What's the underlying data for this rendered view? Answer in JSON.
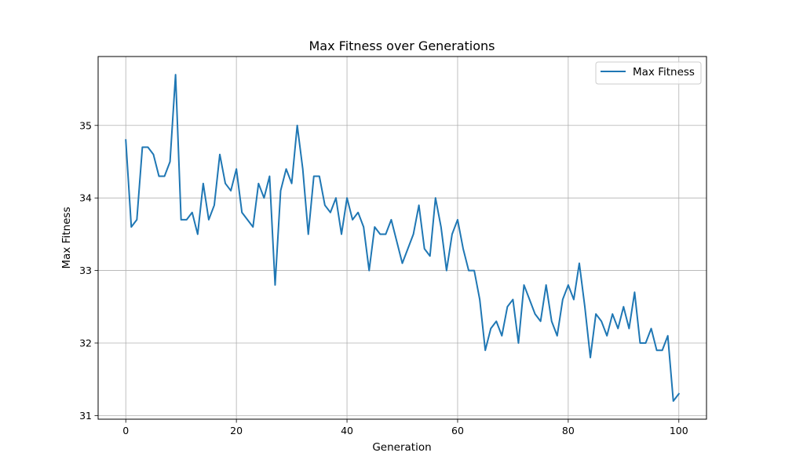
{
  "chart_data": {
    "type": "line",
    "title": "Max Fitness over Generations",
    "xlabel": "Generation",
    "ylabel": "Max Fitness",
    "xlim": [
      -5,
      105
    ],
    "ylim": [
      30.95,
      35.95
    ],
    "xticks": [
      0,
      20,
      40,
      60,
      80,
      100
    ],
    "yticks": [
      31,
      32,
      33,
      34,
      35
    ],
    "grid": true,
    "legend_position": "top-right",
    "series": [
      {
        "name": "Max Fitness",
        "color": "#1f77b4",
        "x": [
          0,
          1,
          2,
          3,
          4,
          5,
          6,
          7,
          8,
          9,
          10,
          11,
          12,
          13,
          14,
          15,
          16,
          17,
          18,
          19,
          20,
          21,
          22,
          23,
          24,
          25,
          26,
          27,
          28,
          29,
          30,
          31,
          32,
          33,
          34,
          35,
          36,
          37,
          38,
          39,
          40,
          41,
          42,
          43,
          44,
          45,
          46,
          47,
          48,
          49,
          50,
          51,
          52,
          53,
          54,
          55,
          56,
          57,
          58,
          59,
          60,
          61,
          62,
          63,
          64,
          65,
          66,
          67,
          68,
          69,
          70,
          71,
          72,
          73,
          74,
          75,
          76,
          77,
          78,
          79,
          80,
          81,
          82,
          83,
          84,
          85,
          86,
          87,
          88,
          89,
          90,
          91,
          92,
          93,
          94,
          95,
          96,
          97,
          98,
          99,
          100
        ],
        "values": [
          34.8,
          33.6,
          33.7,
          34.7,
          34.7,
          34.6,
          34.3,
          34.3,
          34.5,
          35.7,
          33.7,
          33.7,
          33.8,
          33.5,
          34.2,
          33.7,
          33.9,
          34.6,
          34.2,
          34.1,
          34.4,
          33.8,
          33.7,
          33.6,
          34.2,
          34.0,
          34.3,
          32.8,
          34.1,
          34.4,
          34.2,
          35.0,
          34.4,
          33.5,
          34.3,
          34.3,
          33.9,
          33.8,
          34.0,
          33.5,
          34.0,
          33.7,
          33.8,
          33.6,
          33.0,
          33.6,
          33.5,
          33.5,
          33.7,
          33.4,
          33.1,
          33.3,
          33.5,
          33.9,
          33.3,
          33.2,
          34.0,
          33.6,
          33.0,
          33.5,
          33.7,
          33.3,
          33.0,
          33.0,
          32.6,
          31.9,
          32.2,
          32.3,
          32.1,
          32.5,
          32.6,
          32.0,
          32.8,
          32.6,
          32.4,
          32.3,
          32.8,
          32.3,
          32.1,
          32.6,
          32.8,
          32.6,
          33.1,
          32.5,
          31.8,
          32.4,
          32.3,
          32.1,
          32.4,
          32.2,
          32.5,
          32.2,
          32.7,
          32.0,
          32.0,
          32.2,
          31.9,
          31.9,
          32.1,
          31.2,
          31.3
        ]
      }
    ]
  }
}
